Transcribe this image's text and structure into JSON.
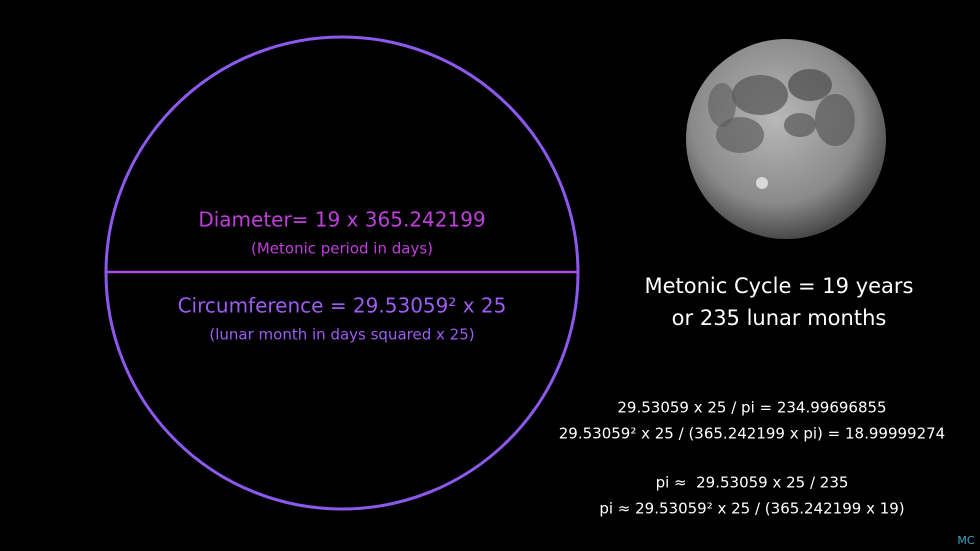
{
  "circle": {
    "diameter_label": "Diameter= 19 x 365.242199",
    "diameter_note": "(Metonic period in days)",
    "circumference_label": "Circumference = 29.53059² x 25",
    "circumference_note": "(lunar month in days squared x 25)"
  },
  "metonic": {
    "lines": [
      "Metonic Cycle = 19 years",
      "or 235 lunar months"
    ]
  },
  "equations": [
    "29.53059 x 25 / pi = 234.99696855",
    "29.53059² x 25 / (365.242199 x pi) = 18.99999274",
    "pi ≈  29.53059 x 25 / 235",
    "pi ≈ 29.53059² x 25 / (365.242199 x 19)"
  ],
  "signature": "MC"
}
